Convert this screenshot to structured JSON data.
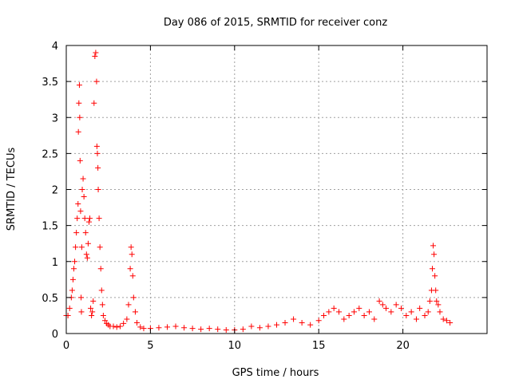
{
  "chart_data": {
    "type": "scatter",
    "title": "Day 086 of 2015, SRMTID for receiver conz",
    "xlabel": "GPS time / hours",
    "ylabel": "SRMTID / TECUs",
    "xlim": [
      0,
      25
    ],
    "ylim": [
      0,
      4
    ],
    "xticks": [
      "0",
      "5",
      "10",
      "15",
      "20"
    ],
    "xtick_values": [
      0,
      5,
      10,
      15,
      20
    ],
    "yticks": [
      "0",
      "0.5",
      "1",
      "1.5",
      "2",
      "2.5",
      "3",
      "3.5",
      "4"
    ],
    "ytick_values": [
      0,
      0.5,
      1,
      1.5,
      2,
      2.5,
      3,
      3.5,
      4
    ],
    "grid": true,
    "marker": "+",
    "color": "#ff0000",
    "series": [
      {
        "name": "SRMTID",
        "x": [
          0,
          0.1,
          0.2,
          0.3,
          0.35,
          0.4,
          0.45,
          0.5,
          0.55,
          0.6,
          0.65,
          0.7,
          0.72,
          0.75,
          0.78,
          0.8,
          0.82,
          0.85,
          0.88,
          0.9,
          0.92,
          0.95,
          1.0,
          1.05,
          1.1,
          1.15,
          1.2,
          1.25,
          1.3,
          1.35,
          1.4,
          1.45,
          1.5,
          1.55,
          1.6,
          1.65,
          1.7,
          1.75,
          1.8,
          1.82,
          1.85,
          1.88,
          1.9,
          1.95,
          2.0,
          2.05,
          2.1,
          2.15,
          2.2,
          2.3,
          2.4,
          2.5,
          2.6,
          2.8,
          3.0,
          3.2,
          3.4,
          3.6,
          3.7,
          3.8,
          3.85,
          3.9,
          3.95,
          4.0,
          4.1,
          4.2,
          4.4,
          4.6,
          5.0,
          5.5,
          6.0,
          6.5,
          7.0,
          7.5,
          8.0,
          8.5,
          9.0,
          9.5,
          10.0,
          10.5,
          11.0,
          11.5,
          12.0,
          12.5,
          13.0,
          13.5,
          14.0,
          14.5,
          15.0,
          15.3,
          15.6,
          15.9,
          16.2,
          16.5,
          16.8,
          17.1,
          17.4,
          17.7,
          18.0,
          18.3,
          18.6,
          18.8,
          19.0,
          19.3,
          19.6,
          19.9,
          20.2,
          20.5,
          20.8,
          21.0,
          21.3,
          21.5,
          21.6,
          21.7,
          21.75,
          21.8,
          21.85,
          21.9,
          21.95,
          22.0,
          22.1,
          22.2,
          22.4,
          22.6,
          22.8
        ],
        "y": [
          0.25,
          0.25,
          0.35,
          0.5,
          0.6,
          0.75,
          0.9,
          1.0,
          1.2,
          1.4,
          1.6,
          1.8,
          2.8,
          3.2,
          3.45,
          3.0,
          2.4,
          1.7,
          0.5,
          0.3,
          1.2,
          2.0,
          2.15,
          1.9,
          1.6,
          1.4,
          1.1,
          1.05,
          1.25,
          1.55,
          1.6,
          0.35,
          0.25,
          0.3,
          0.45,
          3.2,
          3.85,
          3.9,
          3.5,
          2.6,
          2.5,
          2.3,
          2.0,
          1.6,
          1.2,
          0.9,
          0.6,
          0.4,
          0.25,
          0.18,
          0.14,
          0.12,
          0.1,
          0.1,
          0.09,
          0.1,
          0.14,
          0.2,
          0.4,
          0.9,
          1.2,
          1.1,
          0.8,
          0.5,
          0.3,
          0.15,
          0.09,
          0.07,
          0.07,
          0.08,
          0.09,
          0.1,
          0.08,
          0.07,
          0.06,
          0.07,
          0.06,
          0.05,
          0.05,
          0.06,
          0.1,
          0.08,
          0.1,
          0.12,
          0.15,
          0.2,
          0.15,
          0.12,
          0.18,
          0.25,
          0.3,
          0.35,
          0.3,
          0.2,
          0.25,
          0.3,
          0.35,
          0.25,
          0.3,
          0.2,
          0.45,
          0.4,
          0.35,
          0.3,
          0.4,
          0.35,
          0.25,
          0.3,
          0.2,
          0.35,
          0.25,
          0.3,
          0.45,
          0.6,
          0.9,
          1.22,
          1.1,
          0.8,
          0.6,
          0.45,
          0.4,
          0.3,
          0.2,
          0.18,
          0.15
        ]
      }
    ]
  }
}
